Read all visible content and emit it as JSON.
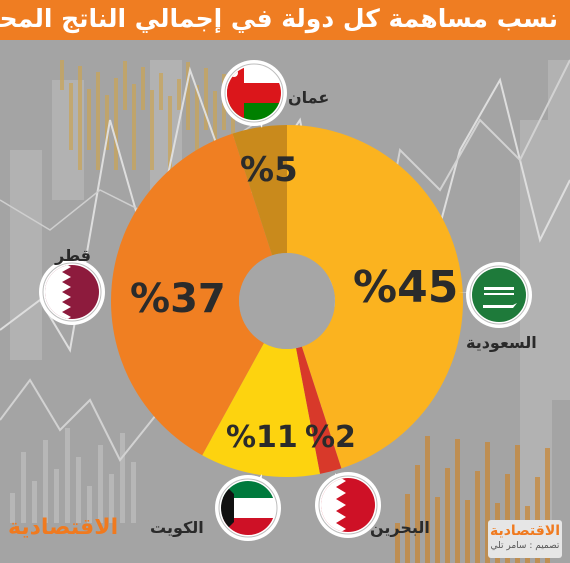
{
  "title": "نسب مساهمة كل دولة في إجمالي الناتج المحلي للدول الخمس",
  "chart_data": {
    "type": "pie",
    "title": "نسب مساهمة كل دولة في إجمالي الناتج المحلي للدول الخمس",
    "slices": [
      {
        "country": "السعودية",
        "value": 45,
        "label": "%45",
        "color": "#fbb31f"
      },
      {
        "country": "البحرين",
        "value": 2,
        "label": "%2",
        "color": "#d8392a"
      },
      {
        "country": "الكويت",
        "value": 11,
        "label": "%11",
        "color": "#fdd30f"
      },
      {
        "country": "قطر",
        "value": 37,
        "label": "%37",
        "color": "#f07f22"
      },
      {
        "country": "عمان",
        "value": 5,
        "label": "%5",
        "color": "#c98a1c"
      }
    ]
  },
  "logo_left": "الاقتصادية",
  "logo_right": {
    "brand": "الاقتصادية",
    "credit": "تصميم : سامر تلي"
  }
}
